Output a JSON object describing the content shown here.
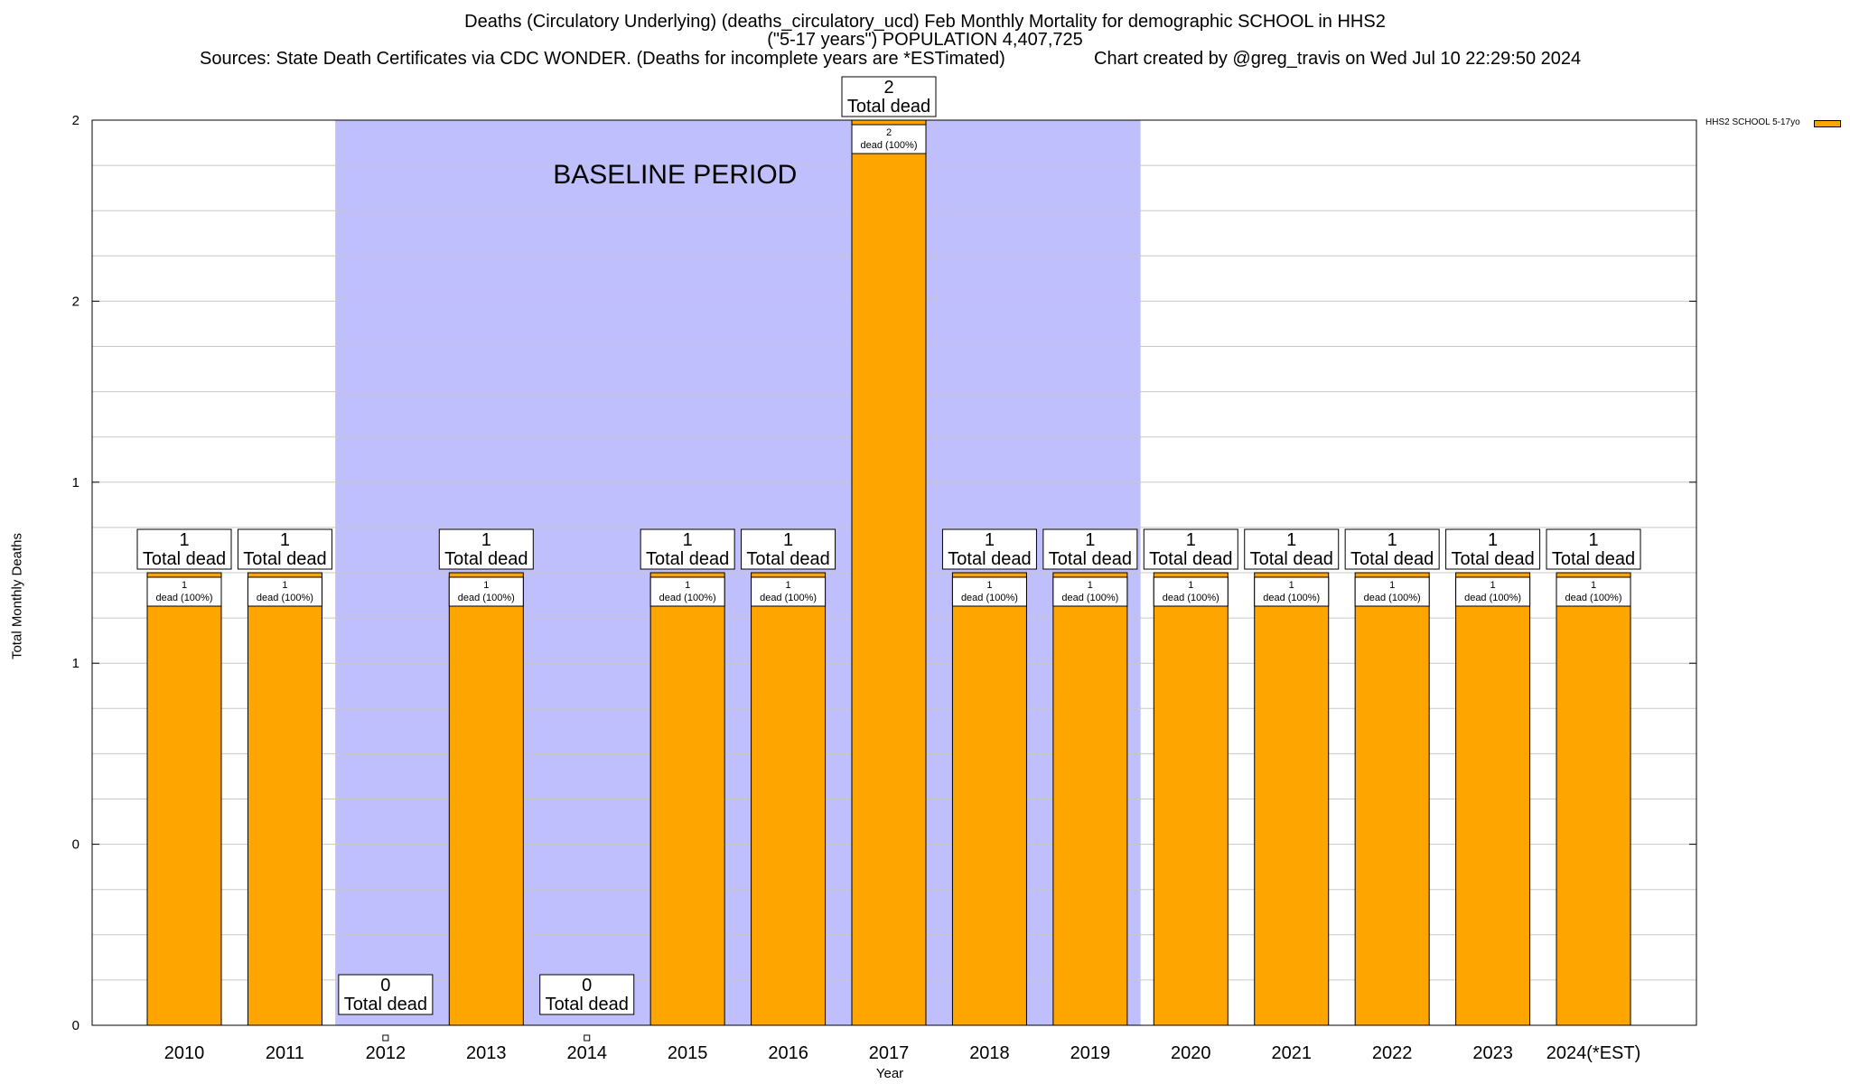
{
  "title": {
    "line1": "Deaths (Circulatory Underlying) (deaths_circulatory_ucd) Feb Monthly Mortality for demographic SCHOOL in HHS2",
    "line2": "(\"5-17 years\") POPULATION 4,407,725",
    "sources": "Sources: State Death Certificates via CDC WONDER. (Deaths for incomplete years are *ESTimated)",
    "credit": "Chart created by @greg_travis on Wed Jul 10 22:29:50 2024"
  },
  "chart_data": {
    "type": "bar",
    "xlabel": "Year",
    "ylabel": "Total Monthly Deaths",
    "ylim": [
      0,
      2
    ],
    "y_tick_labels": [
      "0",
      "0",
      "1",
      "1",
      "2",
      "2"
    ],
    "categories": [
      "2010",
      "2011",
      "2012",
      "2013",
      "2014",
      "2015",
      "2016",
      "2017",
      "2018",
      "2019",
      "2020",
      "2021",
      "2022",
      "2023",
      "2024(*EST)"
    ],
    "series": [
      {
        "name": "HHS2 SCHOOL 5-17yo",
        "color": "#ffa500",
        "values": [
          1,
          1,
          0,
          1,
          0,
          1,
          1,
          2,
          1,
          1,
          1,
          1,
          1,
          1,
          1
        ]
      }
    ],
    "total_label_suffix": "Total dead",
    "inner_label_suffix": "dead (100%)",
    "baseline": {
      "label": "BASELINE PERIOD",
      "from": "2012",
      "to": "2019",
      "color": "#bfbffd"
    },
    "grid": true,
    "legend_position": "top-right"
  },
  "colors": {
    "bar": "#ffa500",
    "baseline_band": "#bfbffd",
    "grid": "#c8c8c8"
  }
}
